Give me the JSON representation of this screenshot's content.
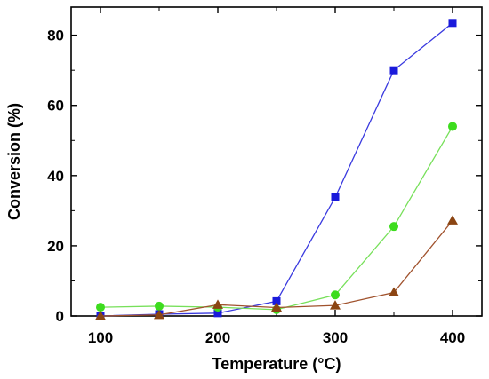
{
  "chart_data": {
    "type": "line",
    "title": "",
    "xlabel": "Temperature (°C)",
    "ylabel": "Conversion (%)",
    "xlim": [
      75,
      425
    ],
    "ylim": [
      0,
      88
    ],
    "x_ticks": [
      100,
      200,
      300,
      400
    ],
    "y_ticks": [
      0,
      20,
      40,
      60,
      80
    ],
    "grid": false,
    "legend": "none",
    "x": [
      100,
      150,
      200,
      250,
      300,
      350,
      400
    ],
    "series": [
      {
        "marker": "square",
        "color": "#1a1adb",
        "line_color": "#3a3adf",
        "values": [
          0.0,
          0.5,
          0.8,
          4.2,
          33.8,
          70.0,
          83.5
        ]
      },
      {
        "marker": "circle",
        "color": "#3ddc1e",
        "line_color": "#77e05a",
        "values": [
          2.5,
          2.8,
          2.5,
          1.8,
          6.0,
          25.5,
          54.0
        ]
      },
      {
        "marker": "triangle",
        "color": "#8b4513",
        "line_color": "#a0522d",
        "values": [
          0.0,
          0.3,
          3.2,
          2.4,
          3.0,
          6.7,
          27.2
        ]
      }
    ]
  }
}
